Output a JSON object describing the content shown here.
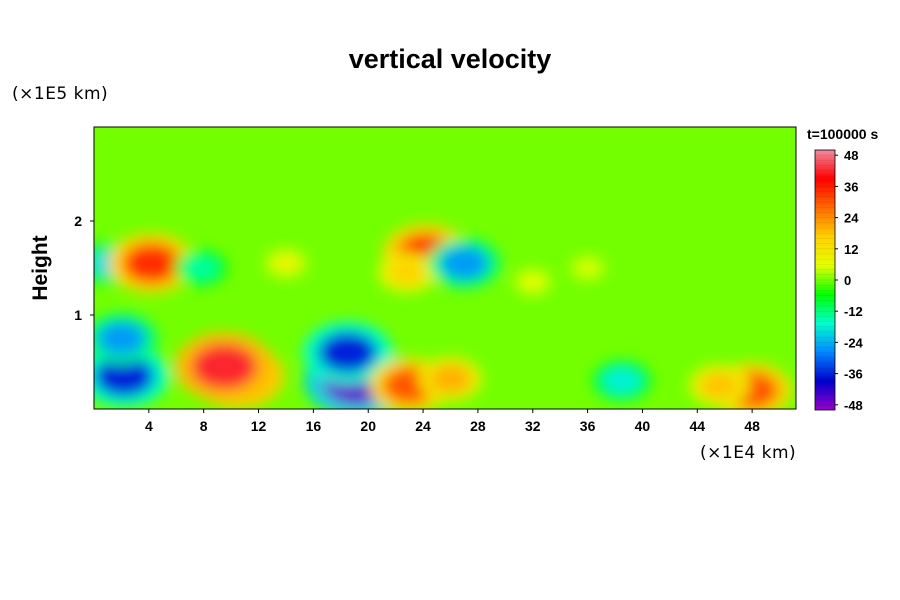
{
  "chart_data": {
    "type": "heatmap",
    "title": "vertical velocity",
    "ylabel": "Height",
    "xlabel": "",
    "x_unit": "(×1E4 km)",
    "y_unit": "(×1E5 km)",
    "time_label": "t=100000 s",
    "xlim": [
      0,
      51.2
    ],
    "ylim": [
      0,
      3
    ],
    "x_ticks": [
      4,
      8,
      12,
      16,
      20,
      24,
      28,
      32,
      36,
      40,
      44,
      48
    ],
    "y_ticks": [
      1,
      2
    ],
    "colorbar": {
      "range": [
        -50,
        50
      ],
      "ticks": [
        48,
        36,
        24,
        12,
        0,
        -12,
        -24,
        -36,
        -48
      ],
      "colors": [
        "#f08ca0",
        "#ff0000",
        "#ff6a00",
        "#ffd000",
        "#e6ff00",
        "#00ff00",
        "#00ffd0",
        "#0088ff",
        "#0000cc",
        "#9900cc"
      ]
    },
    "features": [
      {
        "x": 2.2,
        "y": 0.35,
        "value": -36
      },
      {
        "x": 2.0,
        "y": 0.75,
        "value": -26
      },
      {
        "x": 1.2,
        "y": 1.55,
        "value": -20
      },
      {
        "x": 4.2,
        "y": 1.55,
        "value": 34
      },
      {
        "x": 10.5,
        "y": 0.35,
        "value": 38
      },
      {
        "x": 9.5,
        "y": 0.45,
        "value": 42
      },
      {
        "x": 19.2,
        "y": 0.3,
        "value": -46
      },
      {
        "x": 18.5,
        "y": 0.6,
        "value": -36
      },
      {
        "x": 23.0,
        "y": 0.25,
        "value": 30
      },
      {
        "x": 26.0,
        "y": 0.32,
        "value": 20
      },
      {
        "x": 24.2,
        "y": 1.65,
        "value": 34
      },
      {
        "x": 22.8,
        "y": 1.45,
        "value": 16
      },
      {
        "x": 27.0,
        "y": 1.55,
        "value": -26
      },
      {
        "x": 38.5,
        "y": 0.3,
        "value": -18
      },
      {
        "x": 48.0,
        "y": 0.2,
        "value": 30
      },
      {
        "x": 45.6,
        "y": 0.25,
        "value": 18
      },
      {
        "x": 7.8,
        "y": 1.5,
        "value": -14
      },
      {
        "x": 14.0,
        "y": 1.55,
        "value": 8
      },
      {
        "x": 32.0,
        "y": 1.35,
        "value": 6
      },
      {
        "x": 36.0,
        "y": 1.5,
        "value": 5
      }
    ]
  }
}
